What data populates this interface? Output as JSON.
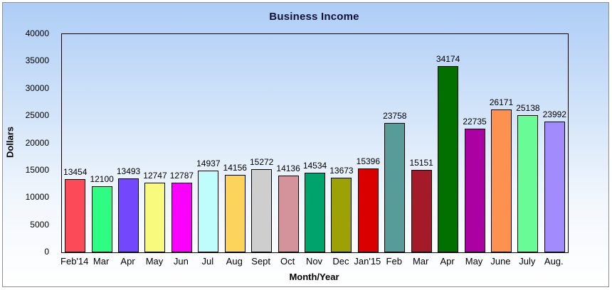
{
  "chart_data": {
    "type": "bar",
    "title": "Business Income",
    "xlabel": "Month/Year",
    "ylabel": "Dollars",
    "ylim": [
      0,
      40000
    ],
    "ytick_step": 5000,
    "yticks": [
      0,
      5000,
      10000,
      15000,
      20000,
      25000,
      30000,
      35000,
      40000
    ],
    "grid": "off",
    "legend": "none",
    "value_labels": true,
    "categories": [
      "Feb'14",
      "Mar",
      "Apr",
      "May",
      "Jun",
      "Jul",
      "Aug",
      "Sept",
      "Oct",
      "Nov",
      "Dec",
      "Jan'15",
      "Feb",
      "Mar",
      "Apr",
      "May",
      "June",
      "July",
      "Aug."
    ],
    "values": [
      13454,
      12100,
      13493,
      12747,
      12787,
      14937,
      14156,
      15272,
      14136,
      14534,
      13673,
      15396,
      23758,
      15151,
      34174,
      22735,
      26171,
      25138,
      23992
    ],
    "bar_colors": [
      "#fc4a59",
      "#2efc83",
      "#7348fc",
      "#f8fa7d",
      "#fb00fb",
      "#bffcfc",
      "#fcd45c",
      "#cecece",
      "#d4939a",
      "#00a36c",
      "#9ca206",
      "#da0000",
      "#579c98",
      "#a51a28",
      "#017001",
      "#ab00a2",
      "#fd914f",
      "#69fb96",
      "#a18bfd"
    ]
  },
  "colors": {
    "background_top": "#aecdf6",
    "background_bottom": "#ffffff",
    "outer_border": "#8f8f8f",
    "bar_border": "#000000",
    "title_color": "#111138",
    "text_color": "#000000"
  }
}
